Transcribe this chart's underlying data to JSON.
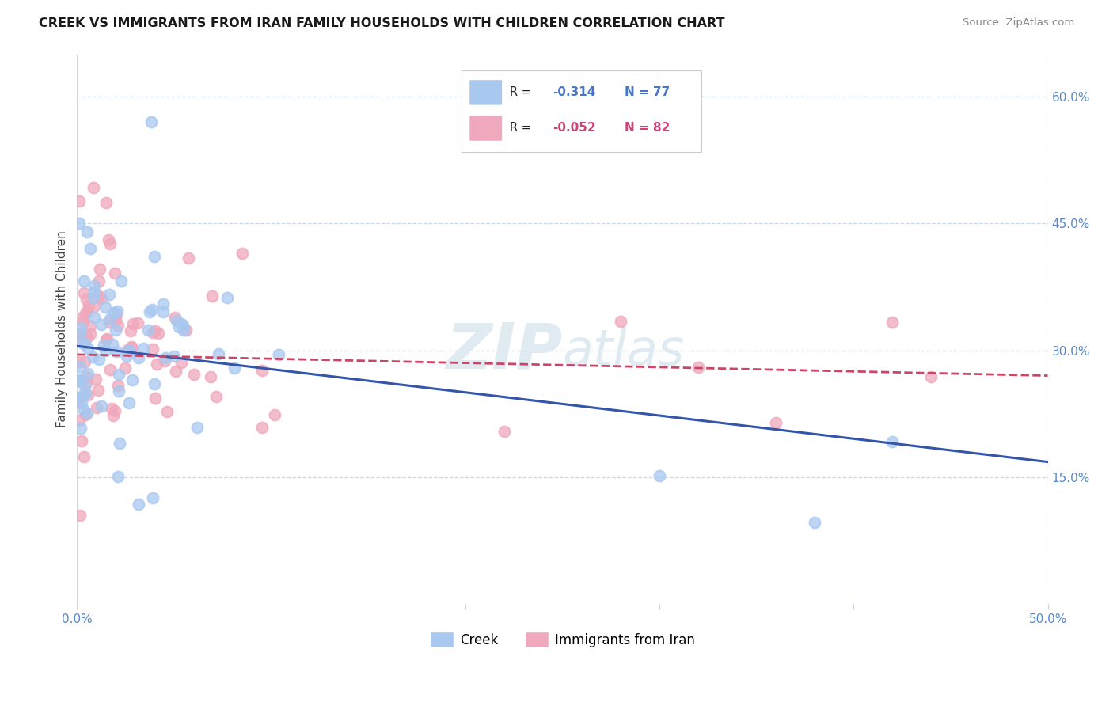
{
  "title": "CREEK VS IMMIGRANTS FROM IRAN FAMILY HOUSEHOLDS WITH CHILDREN CORRELATION CHART",
  "source": "Source: ZipAtlas.com",
  "ylabel": "Family Households with Children",
  "xlim": [
    0.0,
    0.5
  ],
  "ylim": [
    0.0,
    0.65
  ],
  "ytick_positions": [
    0.15,
    0.3,
    0.45,
    0.6
  ],
  "ytick_labels": [
    "15.0%",
    "30.0%",
    "45.0%",
    "60.0%"
  ],
  "creek_color": "#a8c8f0",
  "iran_color": "#f0a8bc",
  "creek_edge_color": "#6699cc",
  "iran_edge_color": "#cc7788",
  "creek_line_color": "#3355aa",
  "iran_line_color": "#cc4466",
  "background_color": "#ffffff",
  "grid_color": "#c8d8e8",
  "watermark": "ZIPatlas",
  "creek_R": -0.314,
  "creek_N": 77,
  "iran_R": -0.052,
  "iran_N": 82,
  "creek_line_x0": 0.0,
  "creek_line_y0": 0.305,
  "creek_line_x1": 0.5,
  "creek_line_y1": 0.168,
  "iran_line_x0": 0.0,
  "iran_line_y0": 0.295,
  "iran_line_x1": 0.5,
  "iran_line_y1": 0.27
}
